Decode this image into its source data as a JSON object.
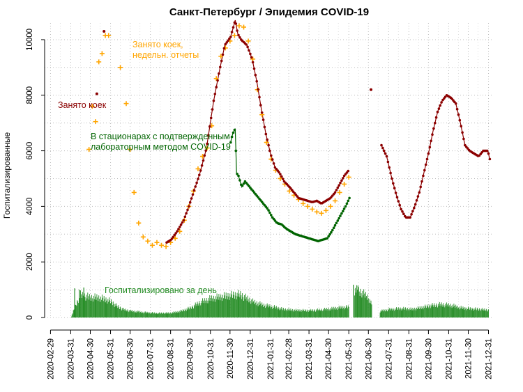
{
  "chart_data": {
    "type": "line",
    "title": "Санкт-Петербург / Эпидемия COVID-19",
    "ylabel": "Госпитализированные",
    "xlabel": "",
    "ylim": [
      0,
      10600
    ],
    "y_ticks": [
      0,
      2000,
      4000,
      6000,
      8000,
      10000
    ],
    "x_range": [
      "2020-02-20",
      "2022-01-08"
    ],
    "x_ticks": [
      "2020-02-29",
      "2020-03-31",
      "2020-04-30",
      "2020-05-31",
      "2020-06-30",
      "2020-07-31",
      "2020-08-31",
      "2020-09-30",
      "2020-10-31",
      "2020-11-30",
      "2020-12-31",
      "2021-01-31",
      "2021-02-28",
      "2021-03-31",
      "2021-04-30",
      "2021-05-31",
      "2021-06-30",
      "2021-07-31",
      "2021-08-31",
      "2021-09-30",
      "2021-10-31",
      "2021-11-30",
      "2021-12-31"
    ],
    "grid": true,
    "colors": {
      "occupied": "#8b0000",
      "weekly": "#ffa500",
      "confirmed": "#006400",
      "daily": "#228b22"
    },
    "annotations": [
      {
        "series": "occupied",
        "lines": [
          "Занято коек"
        ]
      },
      {
        "series": "weekly",
        "lines": [
          "Занято коек,",
          "недельн. отчеты"
        ]
      },
      {
        "series": "confirmed",
        "lines": [
          "В стационарах с подтвержденным",
          "лабораторным методом COVID-19"
        ]
      },
      {
        "series": "daily",
        "lines": [
          "Госпитализировано за день"
        ]
      }
    ],
    "series": [
      {
        "id": "weekly",
        "style": "plus",
        "points": [
          [
            "2020-04-28",
            6050
          ],
          [
            "2020-05-03",
            7600
          ],
          [
            "2020-05-08",
            7050
          ],
          [
            "2020-05-13",
            9200
          ],
          [
            "2020-05-18",
            9500
          ],
          [
            "2020-05-23",
            10150
          ],
          [
            "2020-05-28",
            10150
          ],
          [
            "2020-06-15",
            9000
          ],
          [
            "2020-06-24",
            7700
          ],
          [
            "2020-06-30",
            6050
          ],
          [
            "2020-07-06",
            4500
          ],
          [
            "2020-07-13",
            3400
          ],
          [
            "2020-07-20",
            2900
          ],
          [
            "2020-07-27",
            2750
          ],
          [
            "2020-08-03",
            2600
          ],
          [
            "2020-08-10",
            2700
          ],
          [
            "2020-08-17",
            2600
          ],
          [
            "2020-08-24",
            2550
          ],
          [
            "2020-08-31",
            2700
          ],
          [
            "2020-09-07",
            2850
          ],
          [
            "2020-09-14",
            3100
          ],
          [
            "2020-09-21",
            3500
          ],
          [
            "2020-09-28",
            4000
          ],
          [
            "2020-10-05",
            4550
          ],
          [
            "2020-10-12",
            5350
          ],
          [
            "2020-10-19",
            5800
          ],
          [
            "2020-10-26",
            6100
          ],
          [
            "2020-11-02",
            6900
          ],
          [
            "2020-11-09",
            8600
          ],
          [
            "2020-11-16",
            9400
          ],
          [
            "2020-11-23",
            9700
          ],
          [
            "2020-11-30",
            9950
          ],
          [
            "2020-12-07",
            10150
          ],
          [
            "2020-12-14",
            10500
          ],
          [
            "2020-12-21",
            10450
          ],
          [
            "2020-12-28",
            9950
          ],
          [
            "2021-01-04",
            9300
          ],
          [
            "2021-01-11",
            8200
          ],
          [
            "2021-01-18",
            7300
          ],
          [
            "2021-01-25",
            6300
          ],
          [
            "2021-02-01",
            5700
          ],
          [
            "2021-02-08",
            5300
          ],
          [
            "2021-02-15",
            5000
          ],
          [
            "2021-02-22",
            4800
          ],
          [
            "2021-03-01",
            4550
          ],
          [
            "2021-03-08",
            4400
          ],
          [
            "2021-03-15",
            4250
          ],
          [
            "2021-03-22",
            4100
          ],
          [
            "2021-03-29",
            4000
          ],
          [
            "2021-04-05",
            3900
          ],
          [
            "2021-04-12",
            3800
          ],
          [
            "2021-04-19",
            3750
          ],
          [
            "2021-04-26",
            3850
          ],
          [
            "2021-05-03",
            4000
          ],
          [
            "2021-05-10",
            4200
          ],
          [
            "2021-05-17",
            4500
          ],
          [
            "2021-05-24",
            4800
          ],
          [
            "2021-05-31",
            5050
          ]
        ]
      },
      {
        "id": "occupied",
        "style": "dotline",
        "segments": [
          [
            [
              "2020-05-10",
              8050
            ]
          ],
          [
            [
              "2020-05-21",
              10300
            ]
          ],
          [
            [
              "2020-08-25",
              2700
            ],
            [
              "2020-09-01",
              2800
            ],
            [
              "2020-09-10",
              3100
            ],
            [
              "2020-09-20",
              3500
            ],
            [
              "2020-09-28",
              4000
            ],
            [
              "2020-10-05",
              4500
            ],
            [
              "2020-10-15",
              5200
            ],
            [
              "2020-10-25",
              6100
            ],
            [
              "2020-11-05",
              7800
            ],
            [
              "2020-11-14",
              8900
            ],
            [
              "2020-11-22",
              9800
            ],
            [
              "2020-12-01",
              10100
            ],
            [
              "2020-12-08",
              10700
            ],
            [
              "2020-12-12",
              10200
            ],
            [
              "2020-12-17",
              10000
            ],
            [
              "2020-12-26",
              9800
            ],
            [
              "2021-01-03",
              9300
            ],
            [
              "2021-01-10",
              8500
            ],
            [
              "2021-01-17",
              7500
            ],
            [
              "2021-01-24",
              6600
            ],
            [
              "2021-01-31",
              5900
            ],
            [
              "2021-02-07",
              5400
            ],
            [
              "2021-02-14",
              5200
            ],
            [
              "2021-02-21",
              4900
            ],
            [
              "2021-03-01",
              4700
            ],
            [
              "2021-03-08",
              4500
            ],
            [
              "2021-03-15",
              4300
            ],
            [
              "2021-03-22",
              4250
            ],
            [
              "2021-03-29",
              4200
            ],
            [
              "2021-04-05",
              4150
            ],
            [
              "2021-04-12",
              4200
            ],
            [
              "2021-04-19",
              4100
            ],
            [
              "2021-04-26",
              4200
            ],
            [
              "2021-05-03",
              4300
            ],
            [
              "2021-05-10",
              4500
            ],
            [
              "2021-05-17",
              4800
            ],
            [
              "2021-05-24",
              5100
            ],
            [
              "2021-05-31",
              5300
            ]
          ],
          [
            [
              "2021-07-04",
              8200
            ]
          ],
          [
            [
              "2021-07-20",
              6200
            ],
            [
              "2021-07-28",
              5800
            ],
            [
              "2021-08-05",
              5000
            ],
            [
              "2021-08-12",
              4400
            ],
            [
              "2021-08-19",
              3900
            ],
            [
              "2021-08-26",
              3600
            ],
            [
              "2021-09-02",
              3600
            ],
            [
              "2021-09-09",
              4000
            ],
            [
              "2021-09-16",
              4500
            ],
            [
              "2021-09-23",
              5200
            ],
            [
              "2021-09-30",
              5900
            ],
            [
              "2021-10-07",
              6700
            ],
            [
              "2021-10-14",
              7400
            ],
            [
              "2021-10-21",
              7800
            ],
            [
              "2021-10-28",
              8000
            ],
            [
              "2021-11-04",
              7900
            ],
            [
              "2021-11-11",
              7700
            ],
            [
              "2021-11-18",
              7000
            ],
            [
              "2021-11-25",
              6200
            ],
            [
              "2021-12-02",
              6000
            ],
            [
              "2021-12-09",
              5900
            ],
            [
              "2021-12-16",
              5800
            ],
            [
              "2021-12-23",
              6000
            ],
            [
              "2021-12-30",
              6000
            ],
            [
              "2022-01-02",
              5700
            ]
          ]
        ]
      },
      {
        "id": "confirmed",
        "style": "dotline",
        "segments": [
          [
            [
              "2020-12-01",
              6300
            ],
            [
              "2020-12-04",
              6600
            ],
            [
              "2020-12-08",
              6800
            ],
            [
              "2020-12-10",
              5200
            ],
            [
              "2020-12-13",
              5100
            ],
            [
              "2020-12-18",
              4700
            ],
            [
              "2020-12-23",
              4900
            ],
            [
              "2020-12-30",
              4700
            ],
            [
              "2021-01-06",
              4500
            ],
            [
              "2021-01-13",
              4300
            ],
            [
              "2021-01-20",
              4100
            ],
            [
              "2021-01-27",
              3900
            ],
            [
              "2021-02-03",
              3600
            ],
            [
              "2021-02-10",
              3400
            ],
            [
              "2021-02-17",
              3350
            ],
            [
              "2021-02-24",
              3200
            ],
            [
              "2021-03-03",
              3100
            ],
            [
              "2021-03-10",
              3000
            ],
            [
              "2021-03-17",
              2950
            ],
            [
              "2021-03-24",
              2900
            ],
            [
              "2021-03-31",
              2850
            ],
            [
              "2021-04-07",
              2800
            ],
            [
              "2021-04-14",
              2750
            ],
            [
              "2021-04-21",
              2800
            ],
            [
              "2021-04-28",
              2850
            ],
            [
              "2021-05-05",
              3100
            ],
            [
              "2021-05-12",
              3400
            ],
            [
              "2021-05-19",
              3700
            ],
            [
              "2021-05-26",
              4000
            ],
            [
              "2021-06-01",
              4300
            ]
          ]
        ]
      },
      {
        "id": "daily",
        "style": "bars",
        "segments": [
          [
            [
              "2020-04-01",
              50
            ],
            [
              "2020-04-08",
              500
            ],
            [
              "2020-04-15",
              900
            ],
            [
              "2020-04-22",
              850
            ],
            [
              "2020-04-30",
              800
            ],
            [
              "2020-05-10",
              800
            ],
            [
              "2020-05-20",
              750
            ],
            [
              "2020-05-31",
              650
            ],
            [
              "2020-06-10",
              450
            ],
            [
              "2020-06-20",
              320
            ],
            [
              "2020-07-01",
              260
            ],
            [
              "2020-07-20",
              210
            ],
            [
              "2020-08-10",
              170
            ],
            [
              "2020-08-31",
              180
            ],
            [
              "2020-09-15",
              250
            ],
            [
              "2020-09-30",
              380
            ],
            [
              "2020-10-15",
              600
            ],
            [
              "2020-10-31",
              750
            ],
            [
              "2020-11-15",
              820
            ],
            [
              "2020-11-30",
              880
            ],
            [
              "2020-12-15",
              920
            ],
            [
              "2020-12-25",
              780
            ],
            [
              "2021-01-05",
              620
            ],
            [
              "2021-01-20",
              500
            ],
            [
              "2021-02-05",
              420
            ],
            [
              "2021-02-20",
              330
            ],
            [
              "2021-03-10",
              290
            ],
            [
              "2021-03-31",
              280
            ],
            [
              "2021-04-15",
              300
            ],
            [
              "2021-05-01",
              340
            ],
            [
              "2021-05-15",
              390
            ],
            [
              "2021-05-31",
              420
            ]
          ],
          [
            [
              "2021-06-09",
              1100
            ],
            [
              "2021-06-20",
              1000
            ],
            [
              "2021-06-30",
              800
            ],
            [
              "2021-07-05",
              500
            ]
          ],
          [
            [
              "2021-07-18",
              250
            ],
            [
              "2021-07-31",
              320
            ],
            [
              "2021-08-20",
              360
            ],
            [
              "2021-09-05",
              330
            ],
            [
              "2021-09-20",
              400
            ],
            [
              "2021-10-05",
              480
            ],
            [
              "2021-10-20",
              520
            ],
            [
              "2021-11-05",
              480
            ],
            [
              "2021-11-20",
              380
            ],
            [
              "2021-12-05",
              350
            ],
            [
              "2021-12-31",
              300
            ]
          ]
        ],
        "spikes": [
          [
            "2020-04-06",
            1050
          ],
          [
            "2020-04-13",
            1000
          ],
          [
            "2020-04-20",
            1080
          ],
          [
            "2021-06-07",
            1180
          ],
          [
            "2021-06-14",
            1150
          ]
        ]
      }
    ]
  }
}
